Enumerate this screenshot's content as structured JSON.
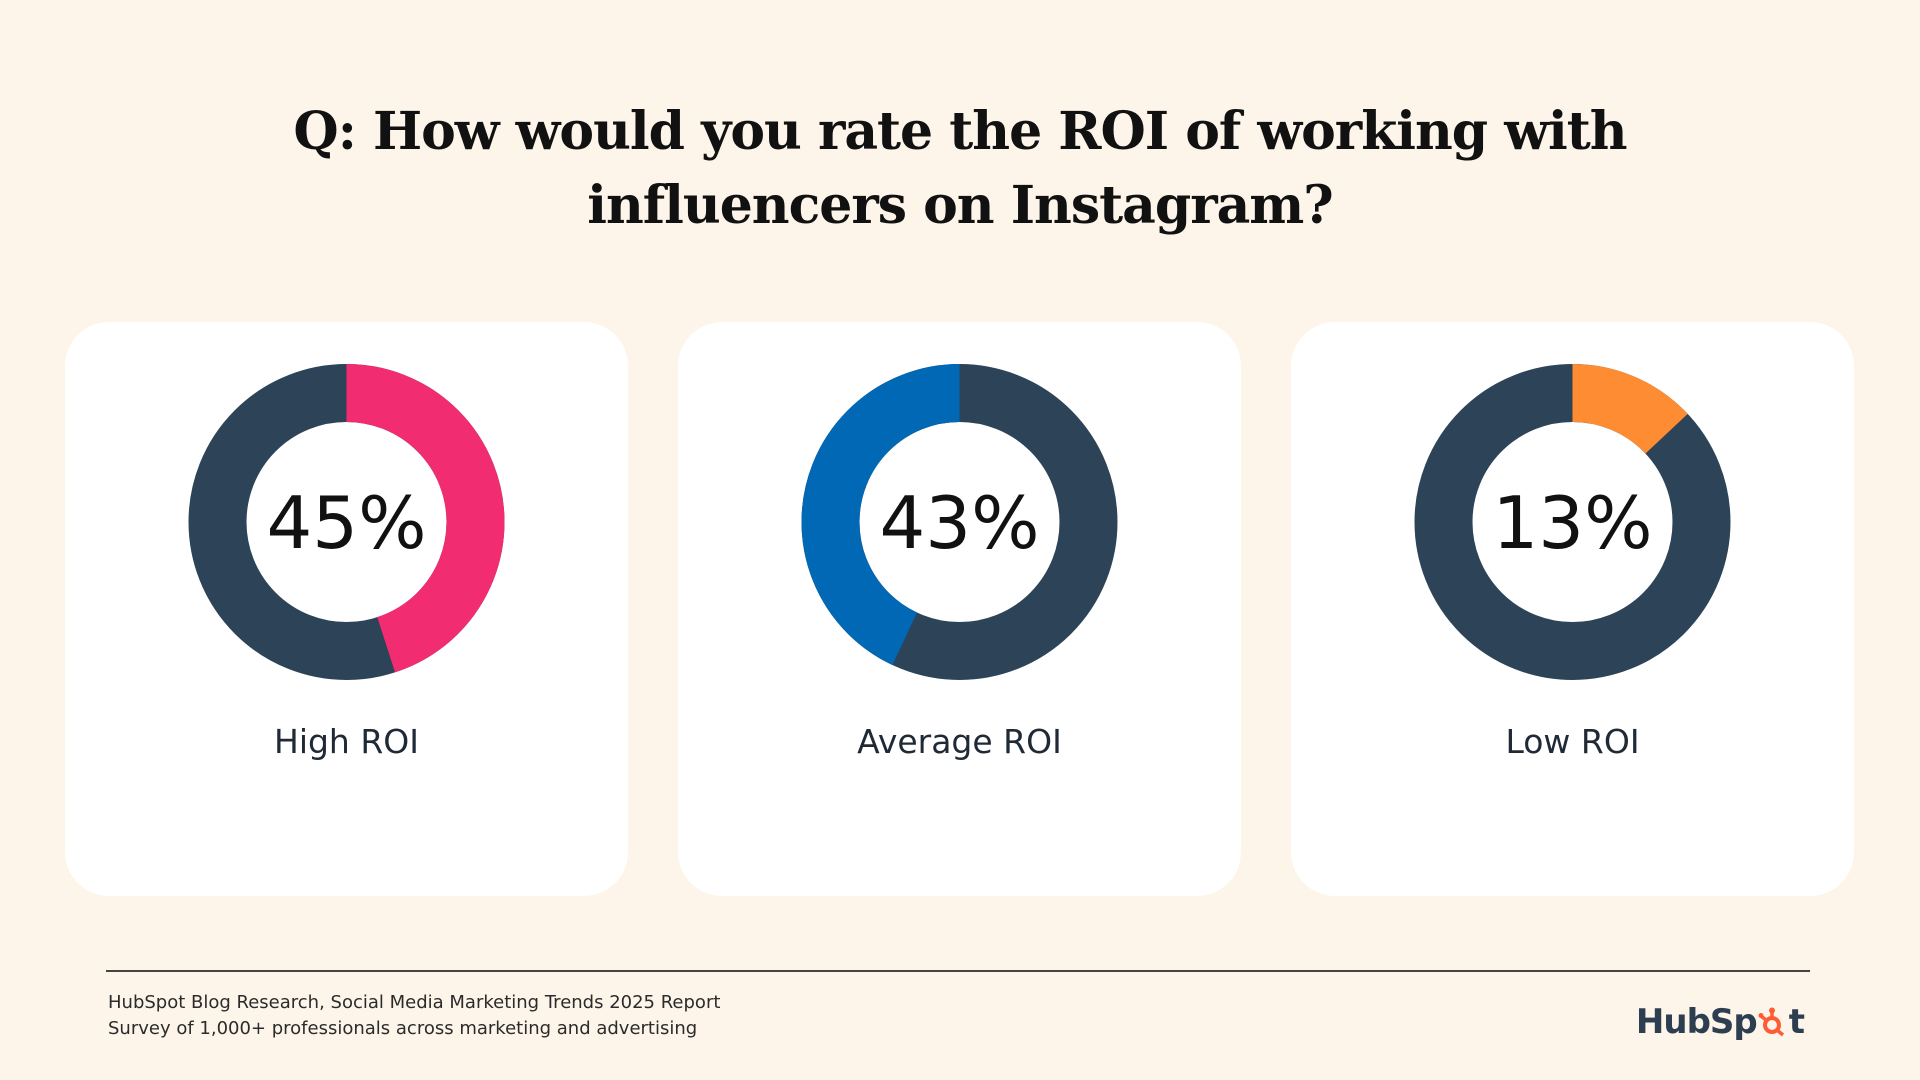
{
  "title": {
    "line1": "Q: How would you rate the ROI of working with",
    "line2": "influencers on Instagram?"
  },
  "chart_data": {
    "type": "pie",
    "variant": "donut",
    "title": "Q: How would you rate the ROI of working with influencers on Instagram?",
    "remainder_color": "#2d4358",
    "series": [
      {
        "name": "High ROI",
        "value": 45,
        "label": "45%",
        "color": "#f22c71"
      },
      {
        "name": "Average ROI",
        "value": 43,
        "label": "43%",
        "color": "#0068b4"
      },
      {
        "name": "Low ROI",
        "value": 13,
        "label": "13%",
        "color": "#fd8c33"
      }
    ]
  },
  "footer": {
    "source_line1": "HubSpot Blog Research, Social Media Marketing Trends 2025 Report",
    "source_line2": "Survey of 1,000+ professionals across marketing and advertising",
    "logo": {
      "prefix": "HubSp",
      "suffix": "t",
      "icon": "sprocket-icon",
      "color": "#2d3e50",
      "accent": "#ff5c35"
    }
  }
}
